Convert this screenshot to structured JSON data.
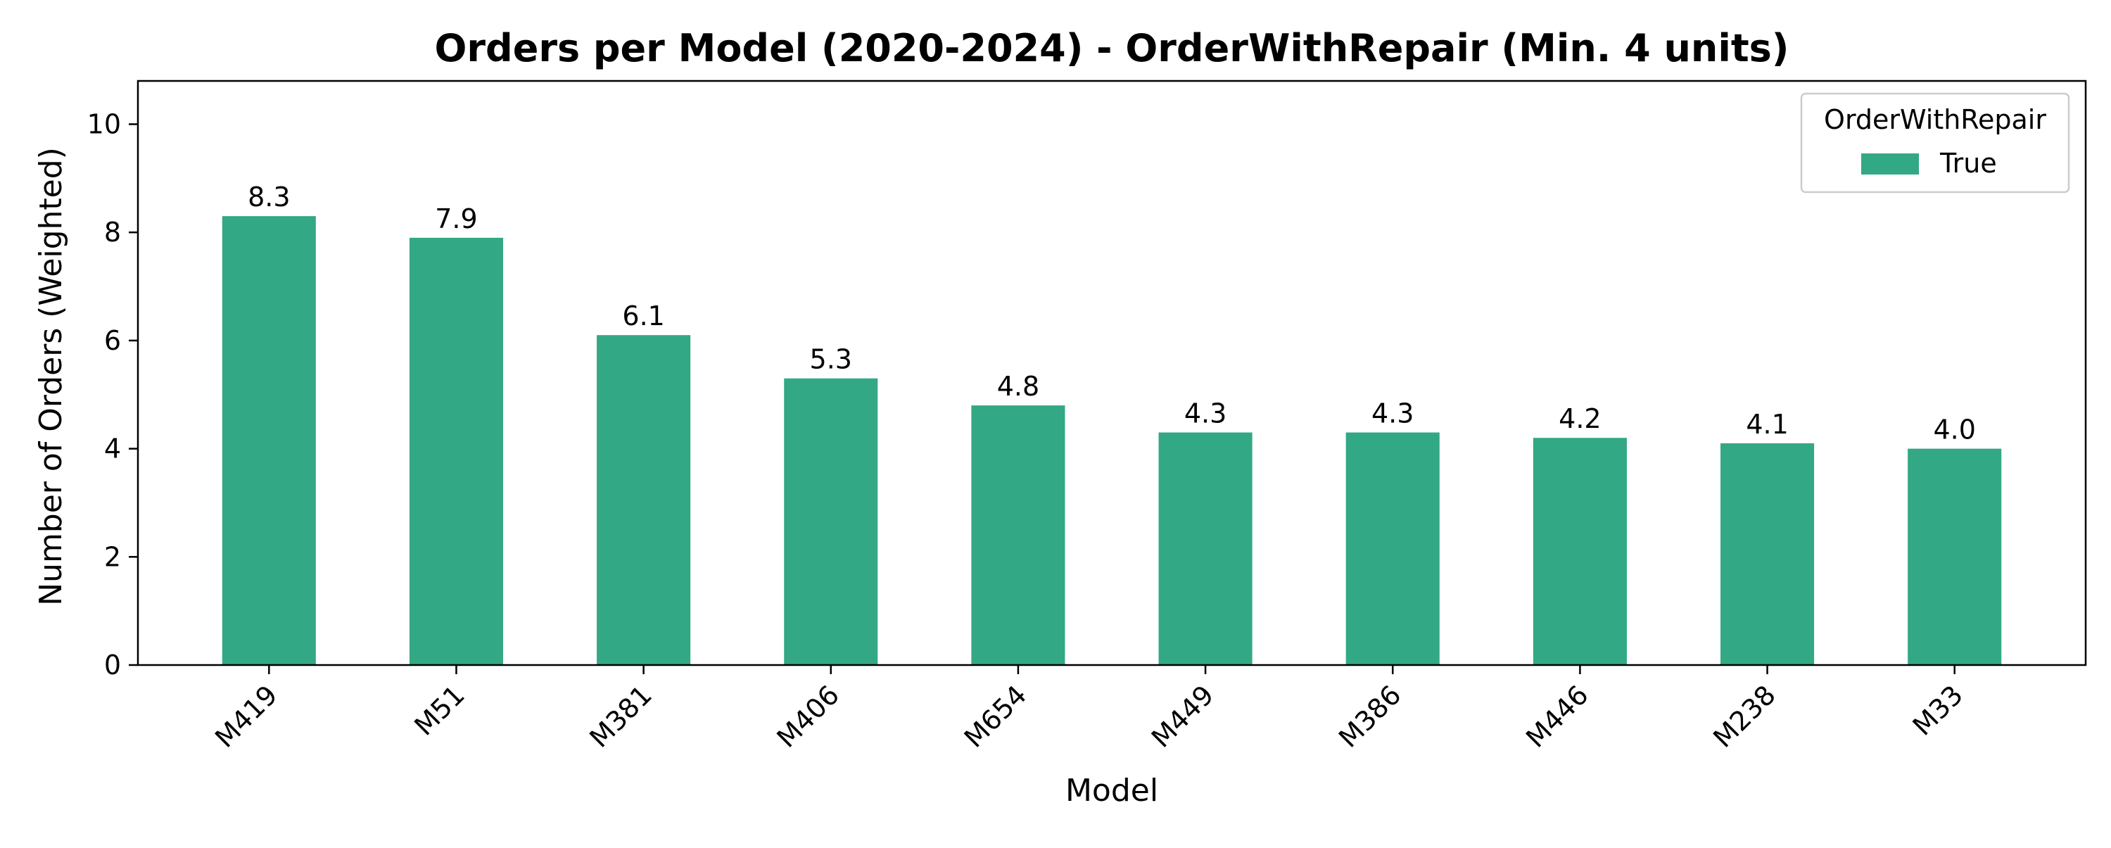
{
  "chart_data": {
    "type": "bar",
    "title": "Orders per Model (2020-2024) - OrderWithRepair (Min. 4 units)",
    "xlabel": "Model",
    "ylabel": "Number of Orders (Weighted)",
    "categories": [
      "M419",
      "M51",
      "M381",
      "M406",
      "M654",
      "M449",
      "M386",
      "M446",
      "M238",
      "M33"
    ],
    "series": [
      {
        "name": "True",
        "values": [
          8.3,
          7.9,
          6.1,
          5.3,
          4.8,
          4.3,
          4.3,
          4.2,
          4.1,
          4.0
        ],
        "color": "#33a884"
      }
    ],
    "data_labels": [
      "8.3",
      "7.9",
      "6.1",
      "5.3",
      "4.8",
      "4.3",
      "4.3",
      "4.2",
      "4.1",
      "4.0"
    ],
    "ylim": [
      0,
      10.8
    ],
    "yticks": [
      0,
      2,
      4,
      6,
      8,
      10
    ],
    "grid": false,
    "legend": {
      "title": "OrderWithRepair",
      "entries": [
        "True"
      ],
      "position": "top-right"
    }
  }
}
